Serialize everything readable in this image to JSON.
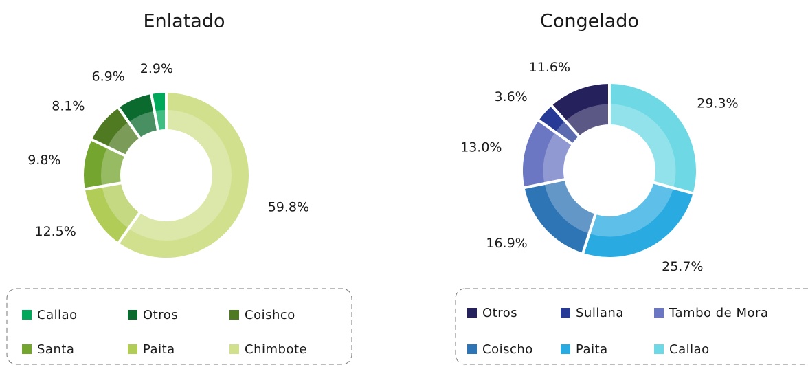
{
  "chart_data": [
    {
      "type": "pie",
      "title": "Enlatado",
      "categories": [
        "Chimbote",
        "Paita",
        "Santa",
        "Coishco",
        "Otros",
        "Callao"
      ],
      "values": [
        59.8,
        12.5,
        9.8,
        8.1,
        6.9,
        2.9
      ],
      "value_labels": [
        "59.8%",
        "12.5%",
        "9.8%",
        "8.1%",
        "6.9%",
        "2.9%"
      ],
      "colors": [
        "#d0e08c",
        "#b2cc58",
        "#74a52f",
        "#4f7a22",
        "#0b6b2e",
        "#00a859"
      ]
    },
    {
      "type": "pie",
      "title": "Congelado",
      "categories": [
        "Callao",
        "Paita",
        "Coischo",
        "Tambo de Mora",
        "Sullana",
        "Otros"
      ],
      "values": [
        29.3,
        25.7,
        16.9,
        13.0,
        3.6,
        11.6
      ],
      "value_labels": [
        "29.3%",
        "25.7%",
        "16.9%",
        "13.0%",
        "3.6%",
        "11.6%"
      ],
      "colors": [
        "#6ed8e4",
        "#29abe2",
        "#2e75b6",
        "#6b77c2",
        "#263a96",
        "#25215c"
      ]
    }
  ]
}
